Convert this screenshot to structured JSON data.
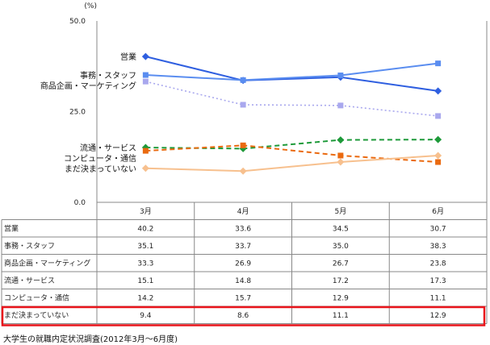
{
  "chart_data": {
    "type": "line",
    "unit_label": "(%)",
    "ylim": [
      0,
      50
    ],
    "y_ticks": [
      "50.0",
      "25.0",
      "0.0"
    ],
    "categories": [
      "3月",
      "4月",
      "5月",
      "6月"
    ],
    "series": [
      {
        "name": "営業",
        "values": [
          40.2,
          33.6,
          34.5,
          30.7
        ],
        "color": "#2f5fe0",
        "dash": "solid",
        "marker": "diamond"
      },
      {
        "name": "事務・スタッフ",
        "values": [
          35.1,
          33.7,
          35.0,
          38.3
        ],
        "color": "#5a8df0",
        "dash": "solid",
        "marker": "square"
      },
      {
        "name": "商品企画・マーケティング",
        "values": [
          33.3,
          26.9,
          26.7,
          23.8
        ],
        "color": "#a9a8ee",
        "dash": "dotted",
        "marker": "square"
      },
      {
        "name": "流通・サービス",
        "values": [
          15.1,
          14.8,
          17.2,
          17.3
        ],
        "color": "#1e9a3a",
        "dash": "dashed",
        "marker": "diamond"
      },
      {
        "name": "コンピュータ・通信",
        "values": [
          14.2,
          15.7,
          12.9,
          11.1
        ],
        "color": "#ea6a10",
        "dash": "dashed",
        "marker": "square"
      },
      {
        "name": "まだ決まっていない",
        "values": [
          9.4,
          8.6,
          11.1,
          12.9
        ],
        "color": "#f7c08e",
        "dash": "solid",
        "marker": "diamond"
      }
    ],
    "table_rows": [
      {
        "label": "営業",
        "values": [
          "40.2",
          "33.6",
          "34.5",
          "30.7"
        ]
      },
      {
        "label": "事務・スタッフ",
        "values": [
          "35.1",
          "33.7",
          "35.0",
          "38.3"
        ]
      },
      {
        "label": "商品企画・マーケティング",
        "values": [
          "33.3",
          "26.9",
          "26.7",
          "23.8"
        ]
      },
      {
        "label": "流通・サービス",
        "values": [
          "15.1",
          "14.8",
          "17.2",
          "17.3"
        ]
      },
      {
        "label": "コンピュータ・通信",
        "values": [
          "14.2",
          "15.7",
          "12.9",
          "11.1"
        ]
      },
      {
        "label": "まだ決まっていない",
        "values": [
          "9.4",
          "8.6",
          "11.1",
          "12.9"
        ]
      }
    ],
    "highlighted_row": "まだ決まっていない",
    "highlight_color": "#e8141b",
    "source": "大学生の就職内定状況調査(2012年3月～6月度)"
  }
}
